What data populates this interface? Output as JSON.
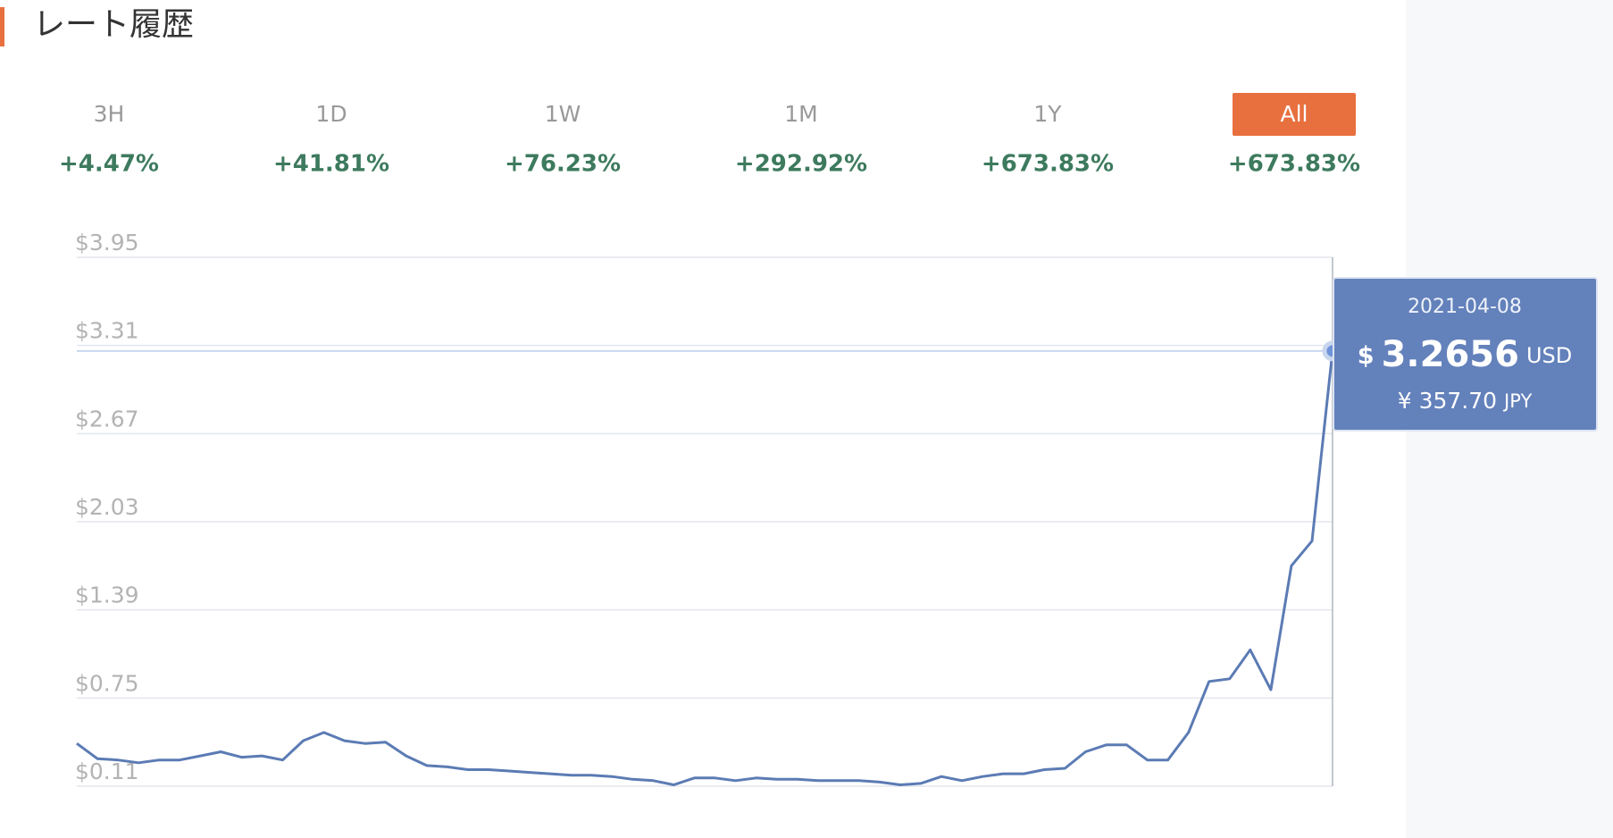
{
  "header": {
    "title": "レート履歴"
  },
  "tabs": {
    "active": 5,
    "items": [
      {
        "label": "3H",
        "change": "+4.47%"
      },
      {
        "label": "1D",
        "change": "+41.81%"
      },
      {
        "label": "1W",
        "change": "+76.23%"
      },
      {
        "label": "1M",
        "change": "+292.92%"
      },
      {
        "label": "1Y",
        "change": "+673.83%"
      },
      {
        "label": "All",
        "change": "+673.83%"
      }
    ]
  },
  "tooltip": {
    "date": "2021-04-08",
    "symbol": "$",
    "price": "3.2656",
    "unit": "USD",
    "jpy": "¥ 357.70",
    "jpy_unit": "JPY"
  },
  "chart_data": {
    "type": "line",
    "color": "#5b7bb4",
    "categories": [
      null,
      null,
      null,
      null,
      null,
      null,
      null,
      null,
      null,
      null,
      null,
      null,
      null,
      null,
      null,
      null,
      null,
      null,
      null,
      null,
      null,
      null,
      null,
      null,
      null,
      null,
      null,
      null,
      null,
      null,
      null,
      null,
      null,
      null,
      null,
      null,
      null,
      null,
      null,
      null,
      null,
      null,
      null,
      null,
      null,
      null,
      null,
      null,
      null,
      null,
      null,
      null,
      null,
      null,
      null,
      null,
      null,
      null,
      null,
      null,
      null,
      null
    ],
    "values": [
      0.42,
      0.31,
      0.3,
      0.28,
      0.3,
      0.3,
      0.33,
      0.36,
      0.32,
      0.33,
      0.3,
      0.44,
      0.5,
      0.44,
      0.42,
      0.43,
      0.33,
      0.26,
      0.25,
      0.23,
      0.23,
      0.22,
      0.21,
      0.2,
      0.19,
      0.19,
      0.18,
      0.16,
      0.15,
      0.12,
      0.17,
      0.17,
      0.15,
      0.17,
      0.16,
      0.16,
      0.15,
      0.15,
      0.15,
      0.14,
      0.12,
      0.13,
      0.18,
      0.15,
      0.18,
      0.2,
      0.2,
      0.23,
      0.24,
      0.36,
      0.41,
      0.41,
      0.3,
      0.3,
      0.5,
      0.87,
      0.89,
      1.1,
      0.81,
      1.71,
      1.89,
      3.27
    ],
    "ylim": [
      0.11,
      3.95
    ],
    "yticks": [
      {
        "value": 0.11,
        "label": "$0.11"
      },
      {
        "value": 0.75,
        "label": "$0.75"
      },
      {
        "value": 1.39,
        "label": "$1.39"
      },
      {
        "value": 2.03,
        "label": "$2.03"
      },
      {
        "value": 2.67,
        "label": "$2.67"
      },
      {
        "value": 3.31,
        "label": "$3.31"
      },
      {
        "value": 3.95,
        "label": "$3.95"
      }
    ],
    "grid": true
  }
}
